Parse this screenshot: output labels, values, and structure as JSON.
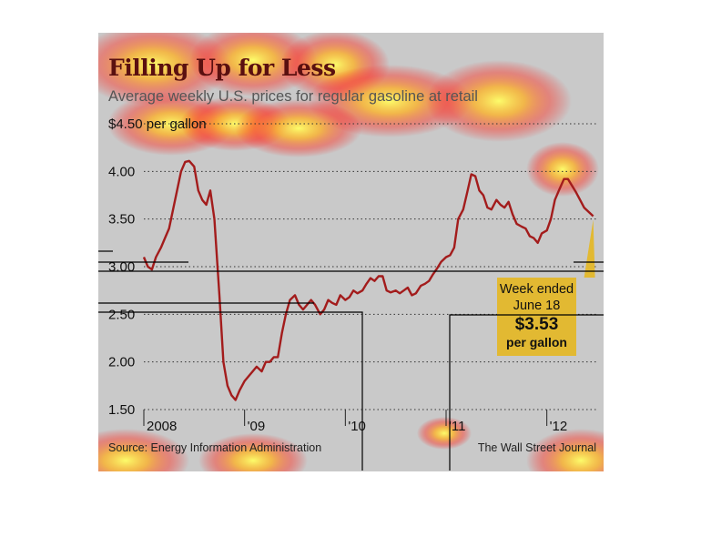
{
  "figure": {
    "title": "Filling Up for Less",
    "subtitle": "Average weekly U.S. prices for regular gasoline at retail",
    "source": "Source: Energy Information Administration",
    "publisher": "The Wall Street Journal",
    "annotation": {
      "line1": "Week ended",
      "line2": "June 18",
      "value": "$3.53",
      "unit": "per gallon"
    }
  },
  "chart_data": {
    "type": "line",
    "title": "Filling Up for Less",
    "subtitle": "Average weekly U.S. prices for regular gasoline at retail",
    "ylabel": "$4.50 per gallon",
    "ylim": [
      1.5,
      4.5
    ],
    "yticks": [
      {
        "value": 4.5,
        "label": "$4.50 per gallon"
      },
      {
        "value": 4.0,
        "label": "4.00"
      },
      {
        "value": 3.5,
        "label": "3.50"
      },
      {
        "value": 3.0,
        "label": "3.00"
      },
      {
        "value": 2.5,
        "label": "2.50"
      },
      {
        "value": 2.0,
        "label": "2.00"
      },
      {
        "value": 1.5,
        "label": "1.50"
      }
    ],
    "xlim": [
      2008.0,
      2012.5
    ],
    "xticks": [
      {
        "value": 2008,
        "label": "2008"
      },
      {
        "value": 2009,
        "label": "'09"
      },
      {
        "value": 2010,
        "label": "'10"
      },
      {
        "value": 2011,
        "label": "'11"
      },
      {
        "value": 2012,
        "label": "'12"
      }
    ],
    "grid": true,
    "line_color": "#a31c1c",
    "series": [
      {
        "x": [
          2008.0,
          2008.04,
          2008.08,
          2008.12,
          2008.17,
          2008.21,
          2008.25,
          2008.29,
          2008.33,
          2008.37,
          2008.41,
          2008.45,
          2008.5,
          2008.54,
          2008.58,
          2008.62,
          2008.66,
          2008.7,
          2008.75,
          2008.79,
          2008.83,
          2008.87,
          2008.91,
          2008.95,
          2009.0,
          2009.04,
          2009.08,
          2009.12,
          2009.17,
          2009.21,
          2009.25,
          2009.29,
          2009.33,
          2009.37,
          2009.41,
          2009.45,
          2009.5,
          2009.54,
          2009.58,
          2009.62,
          2009.66,
          2009.7,
          2009.75,
          2009.79,
          2009.83,
          2009.87,
          2009.91,
          2009.95,
          2010.0,
          2010.04,
          2010.08,
          2010.12,
          2010.17,
          2010.21,
          2010.25,
          2010.29,
          2010.33,
          2010.37,
          2010.41,
          2010.45,
          2010.5,
          2010.54,
          2010.58,
          2010.62,
          2010.66,
          2010.7,
          2010.75,
          2010.79,
          2010.83,
          2010.87,
          2010.91,
          2010.95,
          2011.0,
          2011.04,
          2011.08,
          2011.12,
          2011.17,
          2011.21,
          2011.25,
          2011.29,
          2011.33,
          2011.37,
          2011.41,
          2011.45,
          2011.5,
          2011.54,
          2011.58,
          2011.62,
          2011.66,
          2011.7,
          2011.75,
          2011.79,
          2011.83,
          2011.87,
          2011.91,
          2011.95,
          2012.0,
          2012.04,
          2012.08,
          2012.12,
          2012.17,
          2012.21,
          2012.25,
          2012.29,
          2012.33,
          2012.37,
          2012.41,
          2012.46
        ],
        "values": [
          3.1,
          3.0,
          2.97,
          3.1,
          3.2,
          3.3,
          3.4,
          3.6,
          3.8,
          4.0,
          4.1,
          4.11,
          4.05,
          3.8,
          3.7,
          3.65,
          3.8,
          3.5,
          2.7,
          2.0,
          1.75,
          1.65,
          1.6,
          1.7,
          1.8,
          1.85,
          1.9,
          1.95,
          1.9,
          2.0,
          2.0,
          2.05,
          2.05,
          2.3,
          2.5,
          2.65,
          2.7,
          2.6,
          2.55,
          2.6,
          2.65,
          2.6,
          2.5,
          2.55,
          2.65,
          2.62,
          2.6,
          2.7,
          2.65,
          2.68,
          2.75,
          2.72,
          2.75,
          2.82,
          2.88,
          2.85,
          2.9,
          2.9,
          2.75,
          2.73,
          2.75,
          2.72,
          2.75,
          2.78,
          2.7,
          2.72,
          2.8,
          2.82,
          2.85,
          2.92,
          2.98,
          3.05,
          3.1,
          3.12,
          3.2,
          3.5,
          3.6,
          3.78,
          3.97,
          3.95,
          3.8,
          3.75,
          3.62,
          3.6,
          3.7,
          3.65,
          3.62,
          3.68,
          3.55,
          3.45,
          3.42,
          3.4,
          3.32,
          3.3,
          3.25,
          3.35,
          3.38,
          3.5,
          3.7,
          3.8,
          3.92,
          3.92,
          3.85,
          3.78,
          3.7,
          3.62,
          3.58,
          3.53
        ]
      }
    ]
  }
}
